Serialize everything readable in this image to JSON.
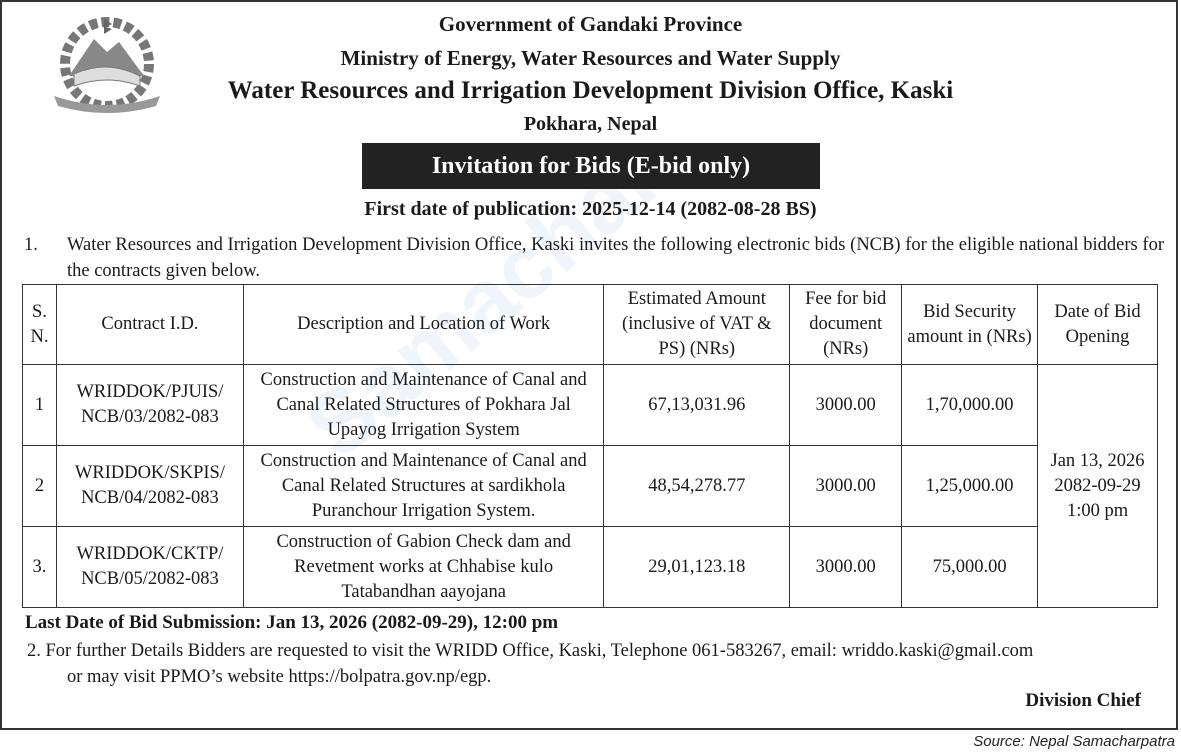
{
  "header": {
    "line1": "Government of Gandaki Province",
    "line2": "Ministry of Energy, Water Resources and Water Supply",
    "line3": "Water Resources and Irrigation Development Division Office, Kaski",
    "line4": "Pokhara, Nepal",
    "banner": "Invitation for Bids (E-bid only)",
    "publication": "First date of publication: 2025-12-14 (2082-08-28 BS)",
    "emblem": "Government of Nepal emblem"
  },
  "para1": {
    "num": "1.",
    "text": "Water Resources and Irrigation Development Division Office, Kaski invites the following electronic bids (NCB) for the eligible national bidders for the contracts given below."
  },
  "table": {
    "headers": [
      "S. N.",
      "Contract I.D.",
      "Description and Location of Work",
      "Estimated Amount (inclusive of VAT & PS) (NRs)",
      "Fee for bid document (NRs)",
      "Bid Security amount in (NRs)",
      "Date of Bid Opening"
    ],
    "rows": [
      {
        "sn": "1",
        "id": "WRIDDOK/PJUIS/ NCB/03/2082-083",
        "desc": "Construction and Maintenance of Canal and Canal Related Structures of Pokhara Jal Upayog Irrigation System",
        "amount": "67,13,031.96",
        "fee": "3000.00",
        "security": "1,70,000.00"
      },
      {
        "sn": "2",
        "id": "WRIDDOK/SKPIS/ NCB/04/2082-083",
        "desc": "Construction and Maintenance of Canal and Canal Related Structures at sardikhola Puranchour Irrigation System.",
        "amount": "48,54,278.77",
        "fee": "3000.00",
        "security": "1,25,000.00"
      },
      {
        "sn": "3.",
        "id": "WRIDDOK/CKTP/ NCB/05/2082-083",
        "desc": "Construction of Gabion Check dam and Revetment works at Chhabise kulo Tatabandhan aayojana",
        "amount": "29,01,123.18",
        "fee": "3000.00",
        "security": "75,000.00"
      }
    ],
    "opening": {
      "date": "Jan 13, 2026",
      "bs": "2082-09-29",
      "time": "1:00 pm"
    }
  },
  "last_date": "Last Date of Bid Submission: Jan 13, 2026 (2082-09-29), 12:00 pm",
  "para2": {
    "line1": "2.  For further Details Bidders are requested to visit the WRIDD Office, Kaski, Telephone 061-583267, email: wriddo.kaski@gmail.com",
    "line2": "or may visit PPMO’s website https://bolpatra.gov.np/egp."
  },
  "signature": "Division Chief",
  "source": "Source: Nepal Samacharpatra",
  "watermark": "Samachar"
}
